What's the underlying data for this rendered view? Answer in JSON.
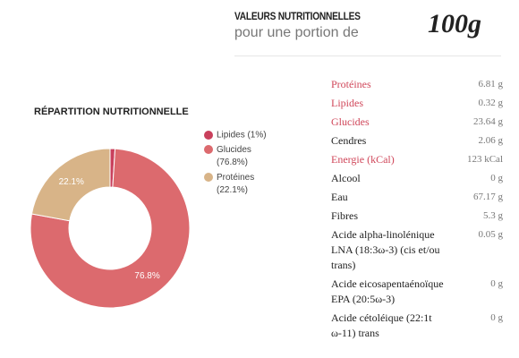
{
  "header": {
    "title": "VALEURS NUTRITIONNELLES",
    "subtitle": "pour une portion de",
    "portion": "100g"
  },
  "chart_data": {
    "type": "pie",
    "donut": true,
    "title": "RÉPARTITION NUTRITIONNELLE",
    "categories": [
      "Lipides",
      "Glucides",
      "Protéines"
    ],
    "legend": [
      "Lipides (1%)",
      "Glucides (76.8%)",
      "Protéines (22.1%)"
    ],
    "values": [
      1,
      76.8,
      22.1
    ],
    "value_labels": [
      null,
      "76.8%",
      "22.1%"
    ],
    "colors": [
      "#c9405c",
      "#dc6a6e",
      "#d8b488"
    ]
  },
  "table": {
    "rows": [
      [
        "Protéines",
        "6.81 g"
      ],
      [
        "Lipides",
        "0.32 g"
      ],
      [
        "Glucides",
        "23.64 g"
      ],
      [
        "Cendres",
        "2.06 g"
      ],
      [
        "Energie (kCal)",
        "123 kCal"
      ],
      [
        "Alcool",
        "0 g"
      ],
      [
        "Eau",
        "67.17 g"
      ],
      [
        "Fibres",
        "5.3 g"
      ],
      [
        "Acide alpha-linolénique LNA (18:3ω-3) (cis et/ou trans)",
        "0.05 g"
      ],
      [
        "Acide eicosapentaénoïque EPA (20:5ω-3)",
        "0 g"
      ],
      [
        "Acide cétoléique (22:1t ω-11) trans",
        "0 g"
      ]
    ]
  }
}
